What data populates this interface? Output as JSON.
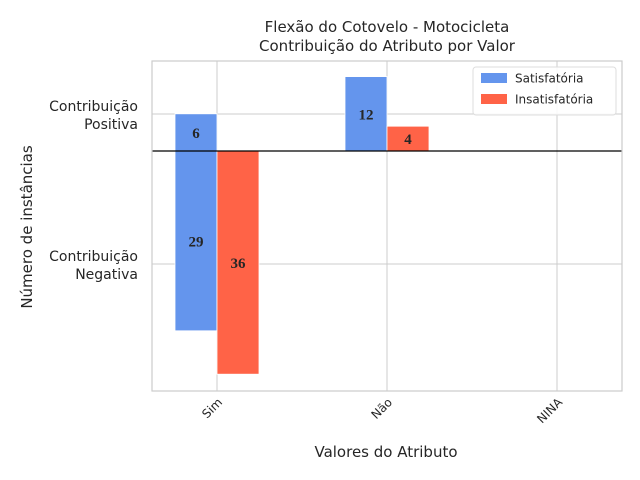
{
  "chart_data": {
    "type": "bar",
    "title": [
      "Flexão do Cotovelo - Motocicleta",
      "Contribuição do Atributo por Valor"
    ],
    "xlabel": "Valores do Atributo",
    "ylabel": "Número de instâncias",
    "categories": [
      "Sim",
      "Não",
      "NINA"
    ],
    "ytick_labels": [
      [
        "Contribuição",
        "Positiva"
      ],
      [
        "Contribuição",
        "Negativa"
      ]
    ],
    "series": [
      {
        "name": "Satisfatória",
        "color": "#6495ED",
        "positive": [
          6,
          12,
          0
        ],
        "negative": [
          29,
          0,
          0
        ]
      },
      {
        "name": "Insatisfatória",
        "color": "#FF6347",
        "positive": [
          0,
          4,
          0
        ],
        "negative": [
          36,
          0,
          0
        ]
      }
    ],
    "data_labels": [
      {
        "series": 0,
        "category": 0,
        "part": "positive",
        "text": "6"
      },
      {
        "series": 0,
        "category": 0,
        "part": "negative",
        "text": "29"
      },
      {
        "series": 1,
        "category": 0,
        "part": "negative",
        "text": "36"
      },
      {
        "series": 0,
        "category": 1,
        "part": "positive",
        "text": "12"
      },
      {
        "series": 1,
        "category": 1,
        "part": "positive",
        "text": "4"
      }
    ],
    "ylim": [
      -40,
      15
    ],
    "grid": true,
    "legend_position": "top-right"
  }
}
